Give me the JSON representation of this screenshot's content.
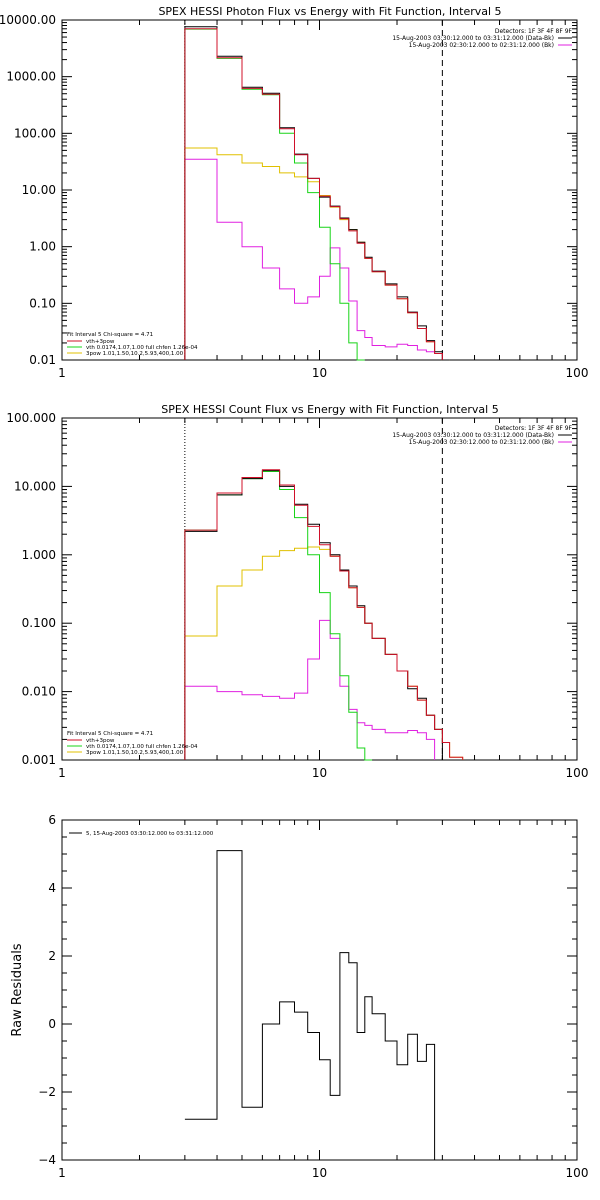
{
  "panels": [
    {
      "title": "SPEX HESSI Photon Flux vs Energy with Fit Function, Interval 5",
      "header_lines": [
        "Detectors: 1F 3F 4F 8F 9F",
        "15-Aug-2003 03:30:12.000 to 03:31:12.000 (Data-Bk)",
        "15-Aug-2003 02:30:12.000 to 02:31:12.000 (Bk)"
      ],
      "legend": [
        "Fit Interval 5   Chi-square = 4.71",
        "vth+3pow",
        "vth 0.0174,1.07,1.00  full chfen 1.26e-04",
        "3pow 1.01,1.50,10.2,5.93,400,1.00"
      ]
    },
    {
      "title": "SPEX HESSI Count Flux vs Energy with Fit Function, Interval 5",
      "header_lines": [
        "Detectors: 1F 3F 4F 8F 9F",
        "15-Aug-2003 03:30:12.000 to 03:31:12.000 (Data-Bk)",
        "15-Aug-2003 02:30:12.000 to 02:31:12.000 (Bk)"
      ],
      "legend": [
        "Fit Interval 5   Chi-square = 4.71",
        "vth+3pow",
        "vth 0.0174,1.07,1.00  full chfen 1.26e-04",
        "3pow 1.01,1.50,10.2,5.93,400,1.00"
      ]
    },
    {
      "title": "",
      "legend": [
        "5, 15-Aug-2003 03:30:12.000 to 03:31:12.000"
      ]
    }
  ],
  "colors": {
    "black": "#000000",
    "red": "#d0102a",
    "green": "#18d418",
    "yellow": "#e0c000",
    "magenta": "#e020e0",
    "orange": "#e08a00"
  },
  "chart_data": [
    {
      "type": "line",
      "step": true,
      "title": "SPEX HESSI Photon Flux vs Energy with Fit Function, Interval 5",
      "xlabel": "",
      "ylabel": "",
      "x_scale": "log",
      "y_scale": "log",
      "xlim": [
        1,
        100
      ],
      "ylim": [
        0.01,
        10000
      ],
      "x_ticks": [
        1,
        10,
        100
      ],
      "x_tick_labels": [
        "1",
        "10",
        "100"
      ],
      "y_ticks": [
        0.01,
        0.1,
        1,
        10,
        100,
        1000,
        10000
      ],
      "y_tick_labels": [
        "0.01",
        "0.10",
        "1.00",
        "10.00",
        "100.00",
        "1000.00",
        "10000.00"
      ],
      "fit_range": [
        3,
        30
      ],
      "bin_edges": [
        3,
        4,
        5,
        6,
        7,
        8,
        9,
        10,
        11,
        12,
        13,
        14,
        15,
        16,
        18,
        20,
        22,
        24,
        26,
        28,
        30,
        32
      ],
      "series": [
        {
          "name": "Data-Bk",
          "values": [
            7600,
            2300,
            650,
            510,
            125,
            43,
            16,
            7.5,
            5.2,
            3.2,
            2.0,
            1.2,
            0.65,
            0.37,
            0.22,
            0.13,
            0.07,
            0.04,
            0.022,
            0.014,
            0.01
          ]
        },
        {
          "name": "vth+3pow",
          "values": [
            7000,
            2150,
            620,
            490,
            120,
            42,
            16,
            7.8,
            5.1,
            3.1,
            1.9,
            1.15,
            0.62,
            0.36,
            0.21,
            0.12,
            0.068,
            0.036,
            0.021,
            0.013
          ]
        },
        {
          "name": "vth",
          "values": [
            6900,
            2100,
            600,
            480,
            100,
            30,
            9,
            2.2,
            0.5,
            0.1,
            0.02,
            0.008
          ]
        },
        {
          "name": "3pow",
          "values": [
            55,
            42,
            30,
            26,
            20,
            17,
            14,
            8.0,
            5.0,
            3.0,
            2.0,
            1.2,
            0.62,
            0.36,
            0.21,
            0.12,
            0.068,
            0.036,
            0.021,
            0.013,
            0.01
          ]
        },
        {
          "name": "Bk",
          "values": [
            35,
            2.7,
            1.0,
            0.42,
            0.18,
            0.1,
            0.13,
            0.3,
            0.95,
            0.42,
            0.11,
            0.033,
            0.025,
            0.018,
            0.017,
            0.019,
            0.018,
            0.015,
            0.014,
            0.013
          ]
        }
      ]
    },
    {
      "type": "line",
      "step": true,
      "title": "SPEX HESSI Count Flux vs Energy with Fit Function, Interval 5",
      "xlabel": "",
      "ylabel": "",
      "x_scale": "log",
      "y_scale": "log",
      "xlim": [
        1,
        100
      ],
      "ylim": [
        0.001,
        100
      ],
      "x_ticks": [
        1,
        10,
        100
      ],
      "x_tick_labels": [
        "1",
        "10",
        "100"
      ],
      "y_ticks": [
        0.001,
        0.01,
        0.1,
        1,
        10,
        100
      ],
      "y_tick_labels": [
        "0.001",
        "0.010",
        "0.100",
        "1.000",
        "10.000",
        "100.000"
      ],
      "fit_range": [
        3,
        30
      ],
      "bin_edges": [
        3,
        4,
        5,
        6,
        7,
        8,
        9,
        10,
        11,
        12,
        13,
        14,
        15,
        16,
        18,
        20,
        22,
        24,
        26,
        28,
        30,
        32,
        36
      ],
      "series": [
        {
          "name": "Data-Bk",
          "values": [
            2.2,
            7.5,
            13,
            17,
            10,
            5.5,
            2.8,
            1.5,
            1.0,
            0.6,
            0.35,
            0.18,
            0.1,
            0.06,
            0.035,
            0.02,
            0.011,
            0.008,
            0.0045,
            0.0028
          ]
        },
        {
          "name": "vth+3pow",
          "values": [
            2.3,
            8.0,
            13.5,
            17.5,
            10.5,
            5.3,
            2.6,
            1.4,
            0.95,
            0.58,
            0.33,
            0.17,
            0.1,
            0.06,
            0.035,
            0.02,
            0.012,
            0.0075,
            0.0045,
            0.0028,
            0.0018,
            0.0011
          ]
        },
        {
          "name": "vth",
          "values": [
            2.3,
            7.5,
            13,
            16.5,
            9,
            3.5,
            1.0,
            0.28,
            0.07,
            0.017,
            0.005,
            0.0015,
            0.0009
          ]
        },
        {
          "name": "3pow",
          "values": [
            0.065,
            0.35,
            0.6,
            0.95,
            1.15,
            1.25,
            1.3,
            1.2,
            0.95,
            0.58,
            0.33,
            0.17,
            0.1,
            0.06,
            0.035,
            0.02,
            0.012,
            0.0075,
            0.0045,
            0.0028,
            0.0018,
            0.0011
          ]
        },
        {
          "name": "Bk",
          "values": [
            0.012,
            0.01,
            0.009,
            0.0085,
            0.008,
            0.0095,
            0.03,
            0.11,
            0.06,
            0.012,
            0.0055,
            0.0035,
            0.0032,
            0.0028,
            0.0025,
            0.0025,
            0.0027,
            0.0025,
            0.002
          ]
        }
      ]
    },
    {
      "type": "line",
      "step": true,
      "title": "",
      "xlabel": "",
      "ylabel": "Raw Residuals",
      "x_scale": "log",
      "y_scale": "linear",
      "xlim": [
        1,
        100
      ],
      "ylim": [
        -4,
        6
      ],
      "x_ticks": [
        1,
        10,
        100
      ],
      "x_tick_labels": [
        "1",
        "10",
        "100"
      ],
      "y_ticks": [
        -4,
        -2,
        0,
        2,
        4,
        6
      ],
      "y_tick_labels": [
        "−4",
        "−2",
        "0",
        "2",
        "4",
        "6"
      ],
      "bin_edges": [
        3,
        4,
        5,
        6,
        7,
        8,
        9,
        10,
        11,
        12,
        13,
        14,
        15,
        16,
        18,
        20,
        22,
        24,
        26,
        28,
        30
      ],
      "series": [
        {
          "name": "5, 15-Aug-2003 03:30:12.000 to 03:31:12.000",
          "values": [
            -2.8,
            5.1,
            -2.45,
            0.0,
            0.65,
            0.35,
            -0.25,
            -1.05,
            -2.1,
            2.1,
            1.8,
            -0.25,
            0.8,
            0.3,
            -0.5,
            -1.2,
            -0.3,
            -1.1,
            -0.6
          ]
        }
      ]
    }
  ]
}
